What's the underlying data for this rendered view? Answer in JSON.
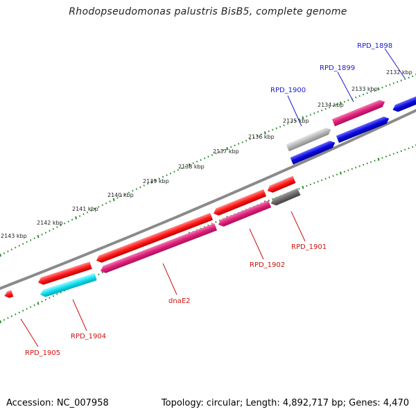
{
  "title": "Rhodopseudomonas palustris BisB5, complete genome",
  "footer": {
    "accession": "Accession: NC_007958",
    "topology": "Topology: circular; Length: 4,892,717 bp; Genes: 4,470"
  },
  "colors": {
    "backbone": "#8a8a8a",
    "tick": "#2a8a2a",
    "label_blue": "#1a1acc",
    "label_red": "#cc1111",
    "red_gene": "#ff1a1a",
    "pink_gene": "#e0207a",
    "blue_gene": "#0a0ae0",
    "cyan_gene": "#10e0f0",
    "grey_gene": "#b8b8b8",
    "dark_grey_gene": "#6a6a6a"
  },
  "kbp_labels": [
    "2132 kbp",
    "2133 kbp",
    "2134 kbp",
    "2135 kbp",
    "2136 kbp",
    "2137 kbp",
    "2138 kbp",
    "2139 kbp",
    "2140 kbp",
    "2141 kbp",
    "2142 kbp",
    "2143 kbp"
  ],
  "gene_labels": {
    "rpd1898": "RPD_1898",
    "rpd1899": "RPD_1899",
    "rpd1900": "RPD_1900",
    "rpd1901": "RPD_1901",
    "rpd1902": "RPD_1902",
    "dnae2": "dnaE2",
    "rpd1904": "RPD_1904",
    "rpd1905": "RPD_1905"
  }
}
